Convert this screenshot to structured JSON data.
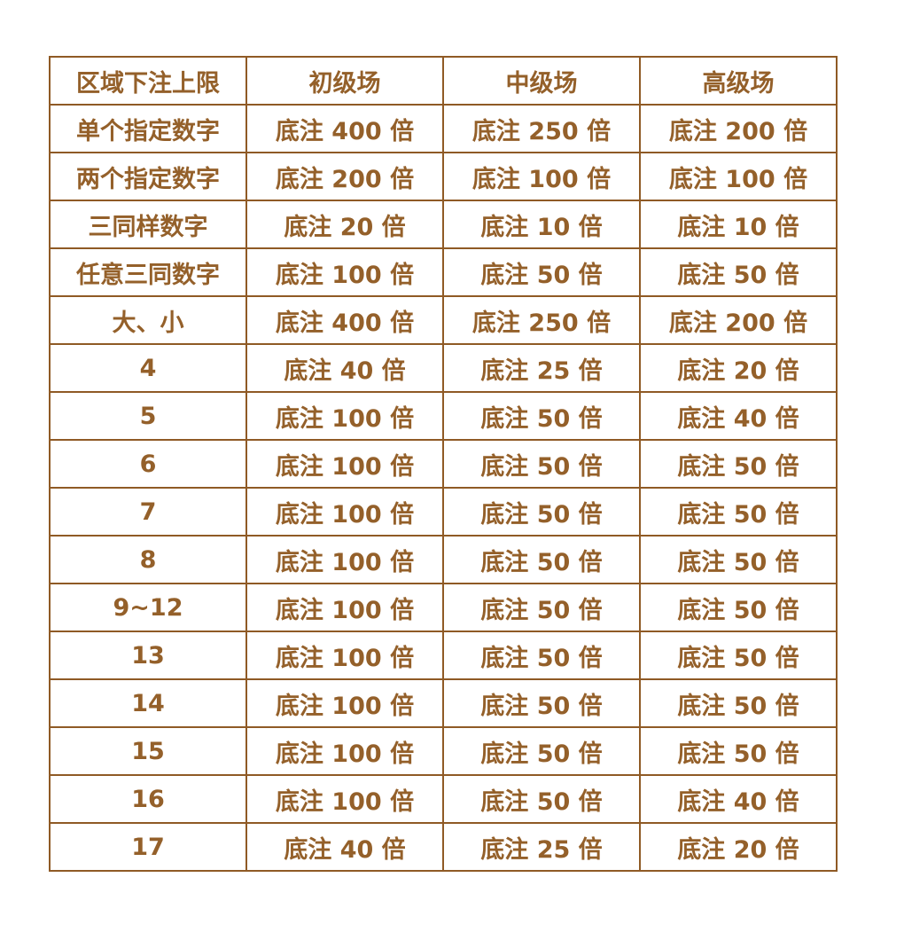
{
  "table": {
    "header": [
      "区域下注上限",
      "初级场",
      "中级场",
      "高级场"
    ],
    "rows": [
      [
        "单个指定数字",
        "底注 400 倍",
        "底注 250 倍",
        "底注 200 倍"
      ],
      [
        "两个指定数字",
        "底注 200 倍",
        "底注 100 倍",
        "底注 100 倍"
      ],
      [
        "三同样数字",
        "底注 20 倍",
        "底注 10 倍",
        "底注 10 倍"
      ],
      [
        "任意三同数字",
        "底注 100 倍",
        "底注 50 倍",
        "底注 50 倍"
      ],
      [
        "大、小",
        "底注 400 倍",
        "底注 250 倍",
        "底注 200 倍"
      ],
      [
        "4",
        "底注 40 倍",
        "底注 25 倍",
        "底注 20 倍"
      ],
      [
        "5",
        "底注 100 倍",
        "底注 50 倍",
        "底注 40 倍"
      ],
      [
        "6",
        "底注 100 倍",
        "底注 50 倍",
        "底注 50 倍"
      ],
      [
        "7",
        "底注 100 倍",
        "底注 50 倍",
        "底注 50 倍"
      ],
      [
        "8",
        "底注 100 倍",
        "底注 50 倍",
        "底注 50 倍"
      ],
      [
        "9~12",
        "底注 100 倍",
        "底注 50 倍",
        "底注 50 倍"
      ],
      [
        "13",
        "底注 100 倍",
        "底注 50 倍",
        "底注 50 倍"
      ],
      [
        "14",
        "底注 100 倍",
        "底注 50 倍",
        "底注 50 倍"
      ],
      [
        "15",
        "底注 100 倍",
        "底注 50 倍",
        "底注 50 倍"
      ],
      [
        "16",
        "底注 100 倍",
        "底注 50 倍",
        "底注 40 倍"
      ],
      [
        "17",
        "底注 40 倍",
        "底注 25 倍",
        "底注 20 倍"
      ]
    ]
  },
  "colors": {
    "border": "#8f5a25",
    "text": "#94602a"
  }
}
